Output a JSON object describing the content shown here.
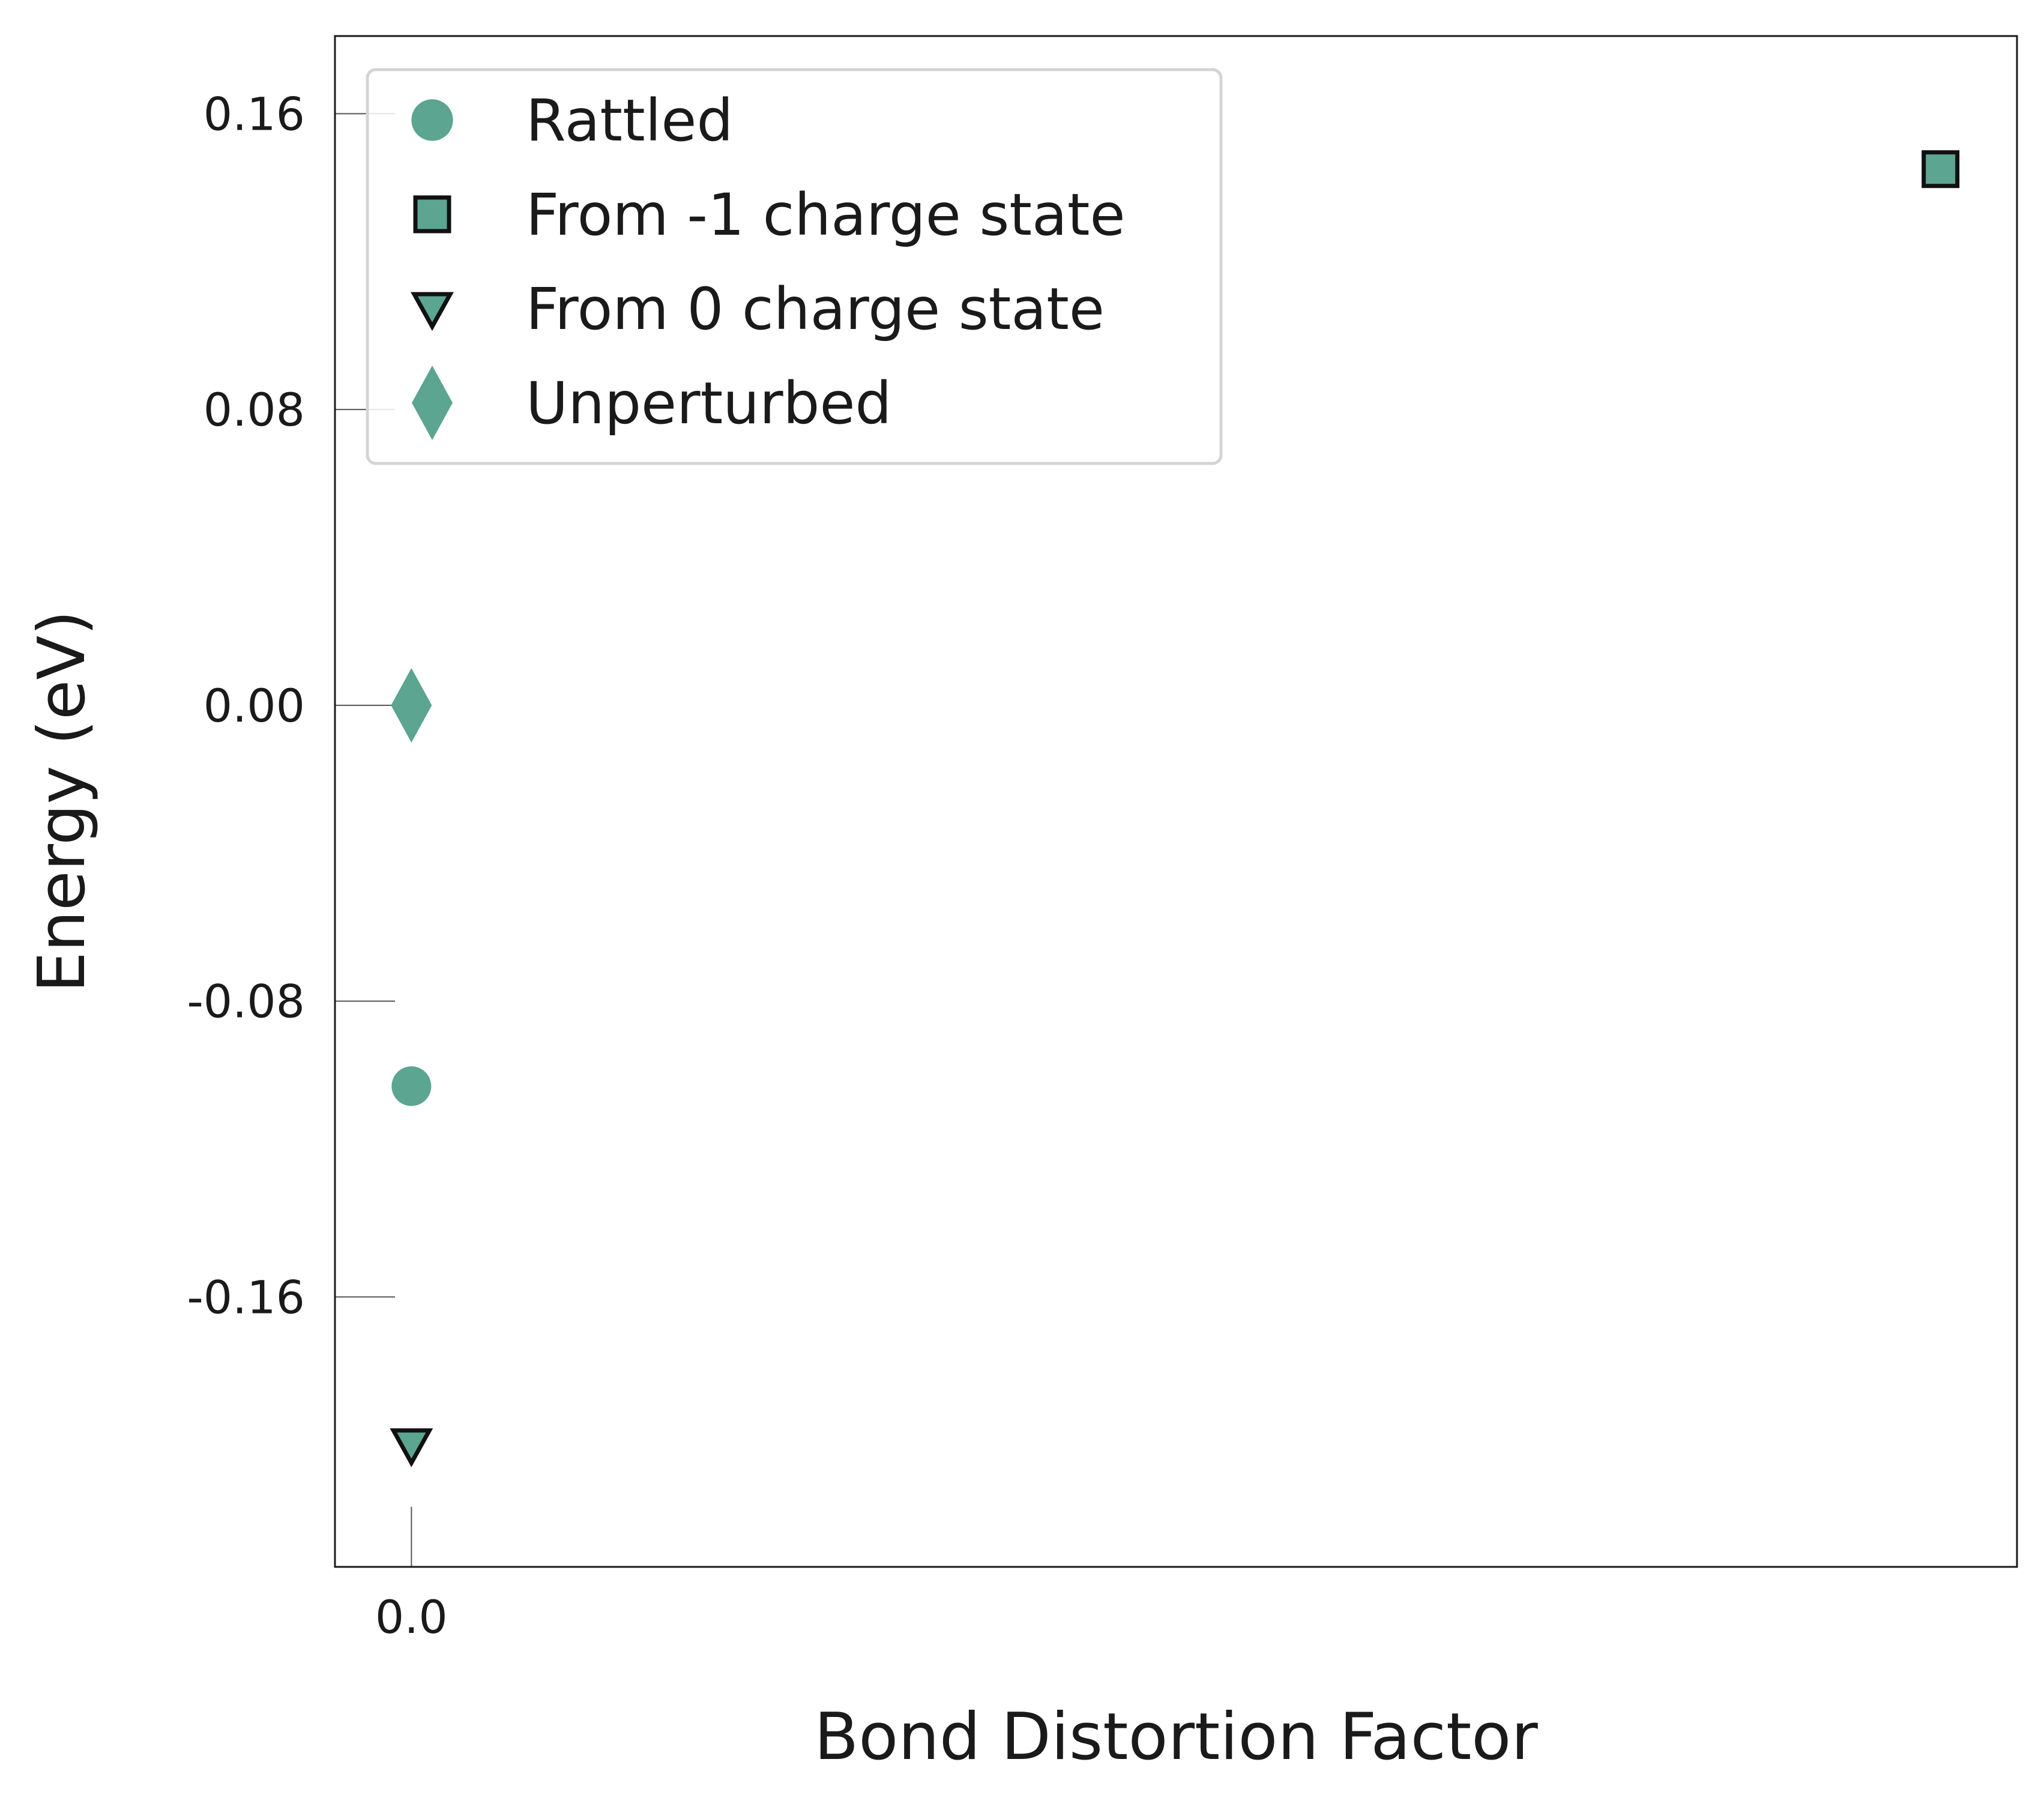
{
  "chart_data": {
    "type": "scatter",
    "title": "",
    "xlabel": "Bond Distortion Factor",
    "ylabel": "Energy (eV)",
    "x_ticks": [
      {
        "value": 0.0,
        "label": "0.0"
      }
    ],
    "y_ticks": [
      {
        "value": 0.16,
        "label": "0.16"
      },
      {
        "value": 0.08,
        "label": "0.08"
      },
      {
        "value": 0.0,
        "label": "0.00"
      },
      {
        "value": -0.08,
        "label": "-0.08"
      },
      {
        "value": -0.16,
        "label": "-0.16"
      }
    ],
    "xlim": [
      -0.05,
      1.05
    ],
    "ylim": [
      -0.233,
      0.181
    ],
    "grid": false,
    "legend_position": "top-left",
    "marker_color": "#5ba591",
    "series": [
      {
        "name": "Rattled",
        "marker": "circle",
        "outlined": false,
        "points": [
          {
            "x": 0.0,
            "y": -0.103
          }
        ]
      },
      {
        "name": "From -1 charge state",
        "marker": "square",
        "outlined": true,
        "points": [
          {
            "x": 1.0,
            "y": 0.145
          }
        ]
      },
      {
        "name": "From 0 charge state",
        "marker": "triangle-down",
        "outlined": true,
        "points": [
          {
            "x": 0.0,
            "y": -0.2
          }
        ]
      },
      {
        "name": "Unperturbed",
        "marker": "diamond",
        "outlined": false,
        "points": [
          {
            "x": 0.0,
            "y": 0.0
          }
        ]
      }
    ]
  }
}
